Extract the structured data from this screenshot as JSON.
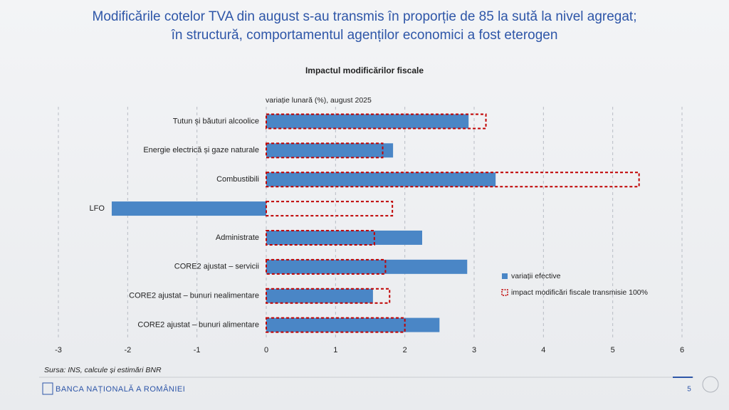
{
  "slide": {
    "title": [
      "Modificările cotelor TVA din august s-au transmis în proporție de 85 la sută la nivel agregat;",
      "în structură, comportamentul agenților economici a fost eterogen"
    ],
    "source": "Sursa: INS, calcule și estimări BNR",
    "footer": {
      "bank": "BANCA NAȚIONALĂ A ROMÂNIEI",
      "page": "5"
    }
  },
  "chart_data": {
    "type": "hbar",
    "title": "Impactul modificărilor fiscale",
    "axis_label": "variație lunară (%), august 2025",
    "categories": [
      "Tutun și băuturi alcoolice",
      "Energie electrică și gaze naturale",
      "Combustibili",
      "LFO",
      "Administrate",
      "CORE2 ajustat – servicii",
      "CORE2 ajustat – bunuri nealimentare",
      "CORE2 ajustat – bunuri alimentare"
    ],
    "series": [
      {
        "name": "variații efective",
        "color": "#4a86c6",
        "style": "solid",
        "values": [
          2.92,
          1.83,
          3.31,
          -2.23,
          2.25,
          2.9,
          1.54,
          2.5
        ]
      },
      {
        "name": "impact modificări fiscale transmisie 100%",
        "color": "#c00000",
        "style": "dashed",
        "values": [
          3.17,
          1.68,
          5.38,
          1.82,
          1.56,
          1.72,
          1.78,
          2.0
        ]
      }
    ],
    "xlim": [
      -3,
      6
    ],
    "xticks": [
      -3,
      -2,
      -1,
      0,
      1,
      2,
      3,
      4,
      5,
      6
    ],
    "grid": true,
    "legend": "right"
  }
}
